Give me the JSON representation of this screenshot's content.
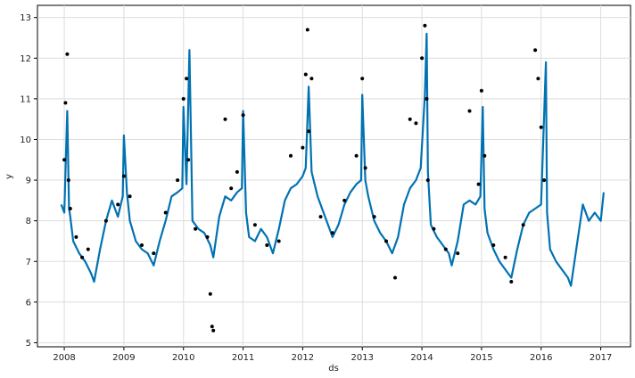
{
  "chart_data": {
    "type": "line",
    "title": "",
    "xlabel": "ds",
    "ylabel": "y",
    "xlim": [
      2007.55,
      2017.5
    ],
    "ylim": [
      4.9,
      13.3
    ],
    "x_ticks": [
      2008,
      2009,
      2010,
      2011,
      2012,
      2013,
      2014,
      2015,
      2016,
      2017
    ],
    "x_tick_labels": [
      "2008",
      "2009",
      "2010",
      "2011",
      "2012",
      "2013",
      "2014",
      "2015",
      "2016",
      "2017"
    ],
    "y_ticks": [
      5,
      6,
      7,
      8,
      9,
      10,
      11,
      12,
      13
    ],
    "y_tick_labels": [
      "5",
      "6",
      "7",
      "8",
      "9",
      "10",
      "11",
      "12",
      "13"
    ],
    "grid": true,
    "legend": "none",
    "colors": {
      "forecast": "#0072B2",
      "observed": "#000000",
      "grid": "#dddddd"
    },
    "series": [
      {
        "kind": "line",
        "x": [
          2007.95,
          2008.0,
          2008.05,
          2008.08,
          2008.1,
          2008.15,
          2008.25,
          2008.35,
          2008.45,
          2008.5,
          2008.6,
          2008.7,
          2008.8,
          2008.9,
          2008.98,
          2009.0,
          2009.05,
          2009.1,
          2009.2,
          2009.3,
          2009.4,
          2009.5,
          2009.6,
          2009.7,
          2009.8,
          2009.9,
          2009.98,
          2010.0,
          2010.05,
          2010.1,
          2010.15,
          2010.25,
          2010.35,
          2010.45,
          2010.5,
          2010.6,
          2010.7,
          2010.8,
          2010.9,
          2010.98,
          2011.0,
          2011.05,
          2011.1,
          2011.2,
          2011.3,
          2011.4,
          2011.5,
          2011.6,
          2011.7,
          2011.8,
          2011.9,
          2012.0,
          2012.05,
          2012.1,
          2012.15,
          2012.25,
          2012.35,
          2012.45,
          2012.5,
          2012.6,
          2012.7,
          2012.8,
          2012.9,
          2012.98,
          2013.0,
          2013.05,
          2013.1,
          2013.2,
          2013.3,
          2013.4,
          2013.5,
          2013.6,
          2013.7,
          2013.8,
          2013.9,
          2013.98,
          2014.05,
          2014.08,
          2014.1,
          2014.15,
          2014.25,
          2014.35,
          2014.45,
          2014.5,
          2014.6,
          2014.7,
          2014.8,
          2014.9,
          2014.98,
          2015.02,
          2015.05,
          2015.1,
          2015.2,
          2015.3,
          2015.4,
          2015.5,
          2015.6,
          2015.7,
          2015.8,
          2015.9,
          2016.0,
          2016.05,
          2016.08,
          2016.1,
          2016.15,
          2016.25,
          2016.35,
          2016.45,
          2016.5,
          2016.6,
          2016.7,
          2016.8,
          2016.9,
          2017.0,
          2017.05
        ],
        "y": [
          8.4,
          8.2,
          10.7,
          8.3,
          8.1,
          7.5,
          7.2,
          7.0,
          6.7,
          6.5,
          7.3,
          8.0,
          8.5,
          8.1,
          8.6,
          10.1,
          8.7,
          8.0,
          7.5,
          7.3,
          7.2,
          6.9,
          7.5,
          8.0,
          8.6,
          8.7,
          8.8,
          10.8,
          8.9,
          12.2,
          8.0,
          7.8,
          7.7,
          7.4,
          7.1,
          8.1,
          8.6,
          8.5,
          8.7,
          8.8,
          10.7,
          8.2,
          7.6,
          7.5,
          7.8,
          7.6,
          7.2,
          7.8,
          8.5,
          8.8,
          8.9,
          9.1,
          9.3,
          11.3,
          9.2,
          8.6,
          8.2,
          7.8,
          7.6,
          7.9,
          8.4,
          8.7,
          8.9,
          9.0,
          11.1,
          9.0,
          8.6,
          8.0,
          7.7,
          7.5,
          7.2,
          7.6,
          8.4,
          8.8,
          9.0,
          9.3,
          11.1,
          12.6,
          9.2,
          7.9,
          7.6,
          7.4,
          7.2,
          6.9,
          7.5,
          8.4,
          8.5,
          8.4,
          8.6,
          10.8,
          8.3,
          7.7,
          7.3,
          7.0,
          6.8,
          6.6,
          7.3,
          7.9,
          8.2,
          8.3,
          8.4,
          10.6,
          11.9,
          8.2,
          7.3,
          7.0,
          6.8,
          6.6,
          6.4,
          7.4,
          8.4,
          8.0,
          8.2,
          8.0,
          8.7
        ]
      },
      {
        "kind": "scatter",
        "x": [
          2008.0,
          2008.02,
          2008.05,
          2008.07,
          2008.1,
          2008.2,
          2008.3,
          2008.4,
          2008.7,
          2008.9,
          2009.0,
          2009.1,
          2009.3,
          2009.5,
          2009.7,
          2009.9,
          2010.0,
          2010.05,
          2010.08,
          2010.2,
          2010.4,
          2010.45,
          2010.48,
          2010.5,
          2010.7,
          2010.8,
          2010.9,
          2011.0,
          2011.2,
          2011.4,
          2011.6,
          2011.8,
          2012.0,
          2012.05,
          2012.08,
          2012.1,
          2012.15,
          2012.3,
          2012.5,
          2012.7,
          2012.9,
          2013.0,
          2013.05,
          2013.2,
          2013.4,
          2013.55,
          2013.8,
          2013.9,
          2014.0,
          2014.05,
          2014.08,
          2014.1,
          2014.2,
          2014.4,
          2014.6,
          2014.8,
          2014.95,
          2015.0,
          2015.05,
          2015.2,
          2015.4,
          2015.5,
          2015.7,
          2015.9,
          2015.95,
          2016.0,
          2016.05
        ],
        "y": [
          9.5,
          10.9,
          12.1,
          9.0,
          8.3,
          7.6,
          7.1,
          7.3,
          8.0,
          8.4,
          9.1,
          8.6,
          7.4,
          7.2,
          8.2,
          9.0,
          11.0,
          11.5,
          9.5,
          7.8,
          7.6,
          6.2,
          5.4,
          5.3,
          10.5,
          8.8,
          9.2,
          10.6,
          7.9,
          7.4,
          7.5,
          9.6,
          9.8,
          11.6,
          12.7,
          10.2,
          11.5,
          8.1,
          7.7,
          8.5,
          9.6,
          11.5,
          9.3,
          8.1,
          7.5,
          6.6,
          10.5,
          10.4,
          12.0,
          12.8,
          11.0,
          9.0,
          7.8,
          7.3,
          7.2,
          10.7,
          8.9,
          11.2,
          9.6,
          7.4,
          7.1,
          6.5,
          7.9,
          12.2,
          11.5,
          10.3,
          9.0
        ]
      }
    ]
  }
}
